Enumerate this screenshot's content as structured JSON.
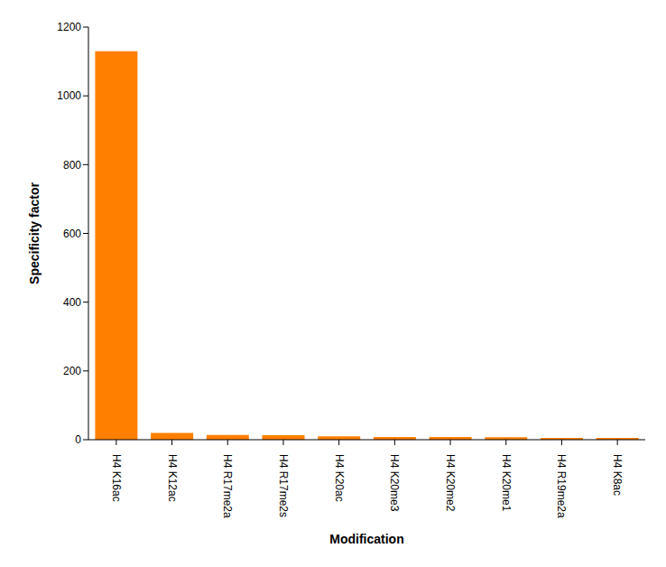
{
  "chart_data": {
    "type": "bar",
    "xlabel": "Modification",
    "ylabel": "Specificity factor",
    "categories": [
      "H4 K16ac",
      "H4 K12ac",
      "H4 R17me2a",
      "H4 R17me2s",
      "H4 K20ac",
      "H4 K20me3",
      "H4 K20me2",
      "H4 K20me1",
      "H4 R19me2a",
      "H4 K8ac"
    ],
    "values": [
      1130,
      20,
      14,
      13,
      10,
      8,
      8,
      7,
      5,
      5
    ],
    "color": "#ff8000",
    "ylim": [
      0,
      1200
    ],
    "yticks": [
      0,
      200,
      400,
      600,
      800,
      1000,
      1200
    ],
    "grid": false
  }
}
